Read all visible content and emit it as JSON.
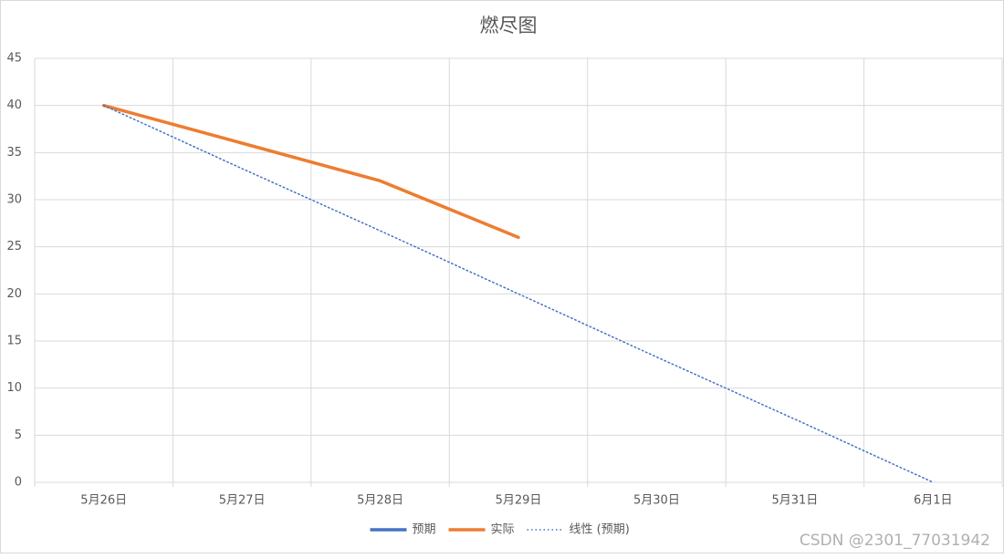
{
  "chart_data": {
    "type": "line",
    "title": "燃尽图",
    "categories": [
      "5月26日",
      "5月27日",
      "5月28日",
      "5月29日",
      "5月30日",
      "5月31日",
      "6月1日"
    ],
    "series": [
      {
        "name": "预期",
        "color": "#4472c4",
        "values": [
          40,
          null,
          null,
          null,
          null,
          null,
          0
        ]
      },
      {
        "name": "实际",
        "color": "#ed7d31",
        "values": [
          40,
          36,
          32,
          26,
          null,
          null,
          null
        ]
      },
      {
        "name": "线性 (预期)",
        "color": "#4472c4",
        "style": "dotted",
        "values": [
          40,
          33.3,
          26.7,
          20,
          13.3,
          6.7,
          0
        ]
      }
    ],
    "ylim": [
      0,
      45
    ],
    "yticks": [
      0,
      5,
      10,
      15,
      20,
      25,
      30,
      35,
      40,
      45
    ],
    "grid": true,
    "legend": "bottom"
  },
  "watermark": "CSDN @2301_77031942"
}
